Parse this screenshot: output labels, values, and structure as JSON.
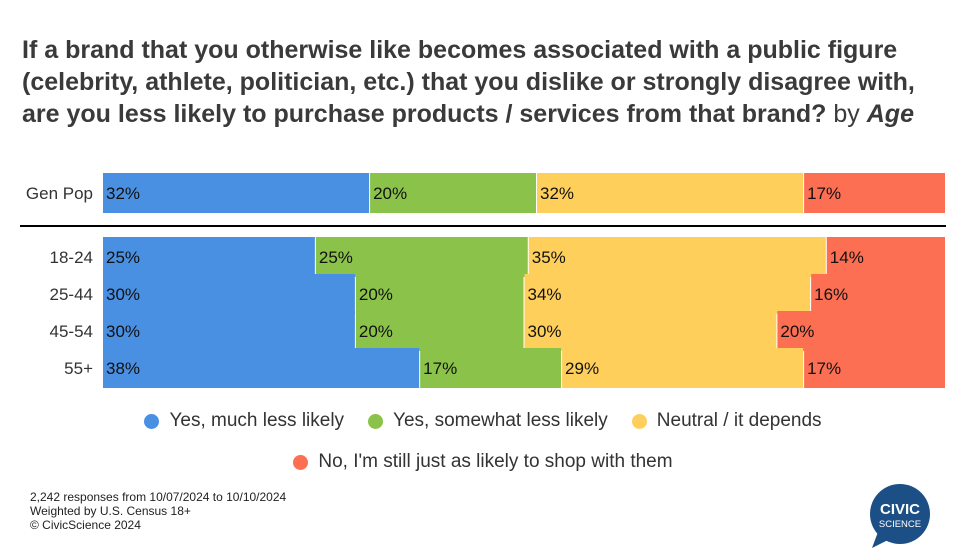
{
  "title": {
    "main": "If a brand that you otherwise like becomes associated with a public figure (celebrity, athlete, politician, etc.) that you dislike or strongly disagree with, are you less likely to purchase products / services from that brand?",
    "by": "by",
    "group": "Age"
  },
  "chart_data": {
    "type": "bar",
    "orientation": "horizontal",
    "stacked": "100%",
    "categories": [
      "Gen Pop",
      "18-24",
      "25-44",
      "45-54",
      "55+"
    ],
    "series": [
      {
        "name": "Yes, much less likely",
        "color": "#4a90e2",
        "values": [
          32,
          25,
          30,
          30,
          38
        ]
      },
      {
        "name": "Yes, somewhat less likely",
        "color": "#8bc34a",
        "values": [
          20,
          25,
          20,
          20,
          17
        ]
      },
      {
        "name": "Neutral / it depends",
        "color": "#ffcf5c",
        "values": [
          32,
          35,
          34,
          30,
          29
        ]
      },
      {
        "name": "No, I'm still just as likely to shop with them",
        "color": "#fd6f53",
        "values": [
          17,
          14,
          16,
          20,
          17
        ]
      }
    ],
    "data_labels": [
      [
        "32%",
        "20%",
        "32%",
        "17%"
      ],
      [
        "25%",
        "25%",
        "35%",
        "14%"
      ],
      [
        "30%",
        "20%",
        "34%",
        "16%"
      ],
      [
        "30%",
        "20%",
        "30%",
        "20%"
      ],
      [
        "38%",
        "17%",
        "29%",
        "17%"
      ]
    ],
    "legend_position": "bottom"
  },
  "footer": {
    "line1": "2,242 responses from 10/07/2024 to 10/10/2024",
    "line2": "Weighted by U.S. Census 18+",
    "line3": "© CivicScience 2024"
  },
  "logo": {
    "line1": "CIVIC",
    "line2": "SCIENCE",
    "color": "#1c4f86"
  }
}
